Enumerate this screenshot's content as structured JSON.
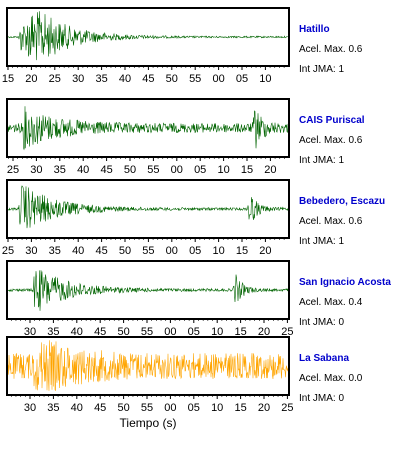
{
  "chart_data": {
    "type": "line",
    "xlabel": "Tiempo (s)",
    "name_color": "#0000cc",
    "accel_prefix": "Acel. Max.",
    "int_prefix": "Int JMA:",
    "panels": [
      {
        "station": "Hatillo",
        "accel_max": "0.6",
        "int_jma": "1",
        "trace_color": "#006400",
        "tick_labels": [
          "15",
          "20",
          "25",
          "30",
          "35",
          "40",
          "45",
          "50",
          "55",
          "00",
          "05",
          "10"
        ],
        "bursts": [
          {
            "x": 0.08,
            "amp": 1.0
          },
          {
            "x": 0.05,
            "amp": 0.6
          }
        ],
        "base": 0.03
      },
      {
        "station": "CAIS Puriscal",
        "accel_max": "0.6",
        "int_jma": "1",
        "trace_color": "#006400",
        "tick_labels": [
          "25",
          "30",
          "35",
          "40",
          "45",
          "50",
          "55",
          "00",
          "05",
          "10",
          "15",
          "20"
        ],
        "bursts": [
          {
            "x": 0.06,
            "amp": 0.7
          },
          {
            "x": 0.88,
            "amp": 0.75
          }
        ],
        "base": 0.18
      },
      {
        "station": "Bebedero, Escazu",
        "accel_max": "0.6",
        "int_jma": "1",
        "trace_color": "#006400",
        "tick_labels": [
          "25",
          "30",
          "35",
          "40",
          "45",
          "50",
          "55",
          "00",
          "05",
          "10",
          "15",
          "20"
        ],
        "bursts": [
          {
            "x": 0.05,
            "amp": 1.0
          },
          {
            "x": 0.86,
            "amp": 0.7
          }
        ],
        "base": 0.05
      },
      {
        "station": "San Ignacio Acosta",
        "accel_max": "0.4",
        "int_jma": "0",
        "trace_color": "#006400",
        "tick_labels": [
          "30",
          "35",
          "40",
          "45",
          "50",
          "55",
          "00",
          "05",
          "10",
          "15",
          "20",
          "25"
        ],
        "bursts": [
          {
            "x": 0.1,
            "amp": 0.9
          },
          {
            "x": 0.81,
            "amp": 0.6
          }
        ],
        "base": 0.05
      },
      {
        "station": "La Sabana",
        "accel_max": "0.0",
        "int_jma": "0",
        "trace_color": "#ffa500",
        "tick_labels": [
          "30",
          "35",
          "40",
          "45",
          "50",
          "55",
          "00",
          "05",
          "10",
          "15",
          "20",
          "25"
        ],
        "bursts": [
          {
            "x": 0.1,
            "amp": 0.9
          }
        ],
        "base": 0.5
      }
    ]
  }
}
